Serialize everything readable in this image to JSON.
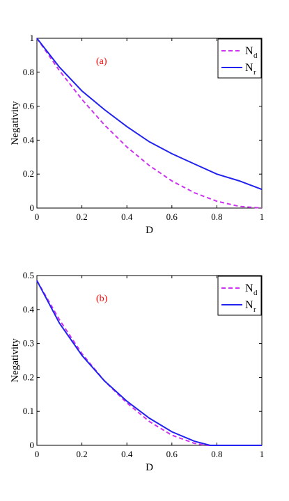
{
  "chart_data": [
    {
      "type": "line",
      "annotation": "(a)",
      "xlabel": "D",
      "ylabel": "Negativity",
      "xlim": [
        0,
        1
      ],
      "ylim": [
        0,
        1
      ],
      "xticks": [
        "0",
        "0.2",
        "0.4",
        "0.6",
        "0.8",
        "1"
      ],
      "yticks": [
        "0",
        "0.2",
        "0.4",
        "0.6",
        "0.8",
        "1"
      ],
      "legend_position": "top-right",
      "series": [
        {
          "name": "N",
          "subscript": "d",
          "color": "#cc33ee",
          "dash": "dashed",
          "x": [
            0,
            0.1,
            0.2,
            0.3,
            0.4,
            0.5,
            0.6,
            0.7,
            0.8,
            0.9,
            1.0
          ],
          "y": [
            1.0,
            0.81,
            0.64,
            0.49,
            0.36,
            0.25,
            0.16,
            0.09,
            0.04,
            0.01,
            0.0
          ]
        },
        {
          "name": "N",
          "subscript": "r",
          "color": "#2222ee",
          "dash": "solid",
          "x": [
            0,
            0.1,
            0.2,
            0.3,
            0.4,
            0.5,
            0.6,
            0.7,
            0.8,
            0.9,
            1.0
          ],
          "y": [
            1.0,
            0.83,
            0.69,
            0.58,
            0.48,
            0.39,
            0.32,
            0.26,
            0.2,
            0.16,
            0.11
          ]
        }
      ]
    },
    {
      "type": "line",
      "annotation": "(b)",
      "xlabel": "D",
      "ylabel": "Negativity",
      "xlim": [
        0,
        1
      ],
      "ylim": [
        0,
        0.5
      ],
      "xticks": [
        "0",
        "0.2",
        "0.4",
        "0.6",
        "0.8",
        "1"
      ],
      "yticks": [
        "0",
        "0.1",
        "0.2",
        "0.3",
        "0.4",
        "0.5"
      ],
      "legend_position": "top-right",
      "series": [
        {
          "name": "N",
          "subscript": "d",
          "color": "#cc33ee",
          "dash": "dashed",
          "x": [
            0,
            0.1,
            0.2,
            0.3,
            0.4,
            0.5,
            0.6,
            0.7,
            0.75,
            0.8,
            0.9,
            1.0
          ],
          "y": [
            0.485,
            0.37,
            0.27,
            0.19,
            0.125,
            0.07,
            0.03,
            0.006,
            0.0,
            0.0,
            0.0,
            0.0
          ]
        },
        {
          "name": "N",
          "subscript": "r",
          "color": "#2222ee",
          "dash": "solid",
          "x": [
            0,
            0.1,
            0.2,
            0.3,
            0.4,
            0.5,
            0.6,
            0.7,
            0.77,
            0.8,
            0.9,
            1.0
          ],
          "y": [
            0.485,
            0.36,
            0.265,
            0.19,
            0.13,
            0.08,
            0.04,
            0.012,
            0.0,
            0.0,
            0.0,
            0.0
          ]
        }
      ]
    }
  ],
  "colors": {
    "annotation": "#ff0000",
    "axis": "#000000"
  }
}
